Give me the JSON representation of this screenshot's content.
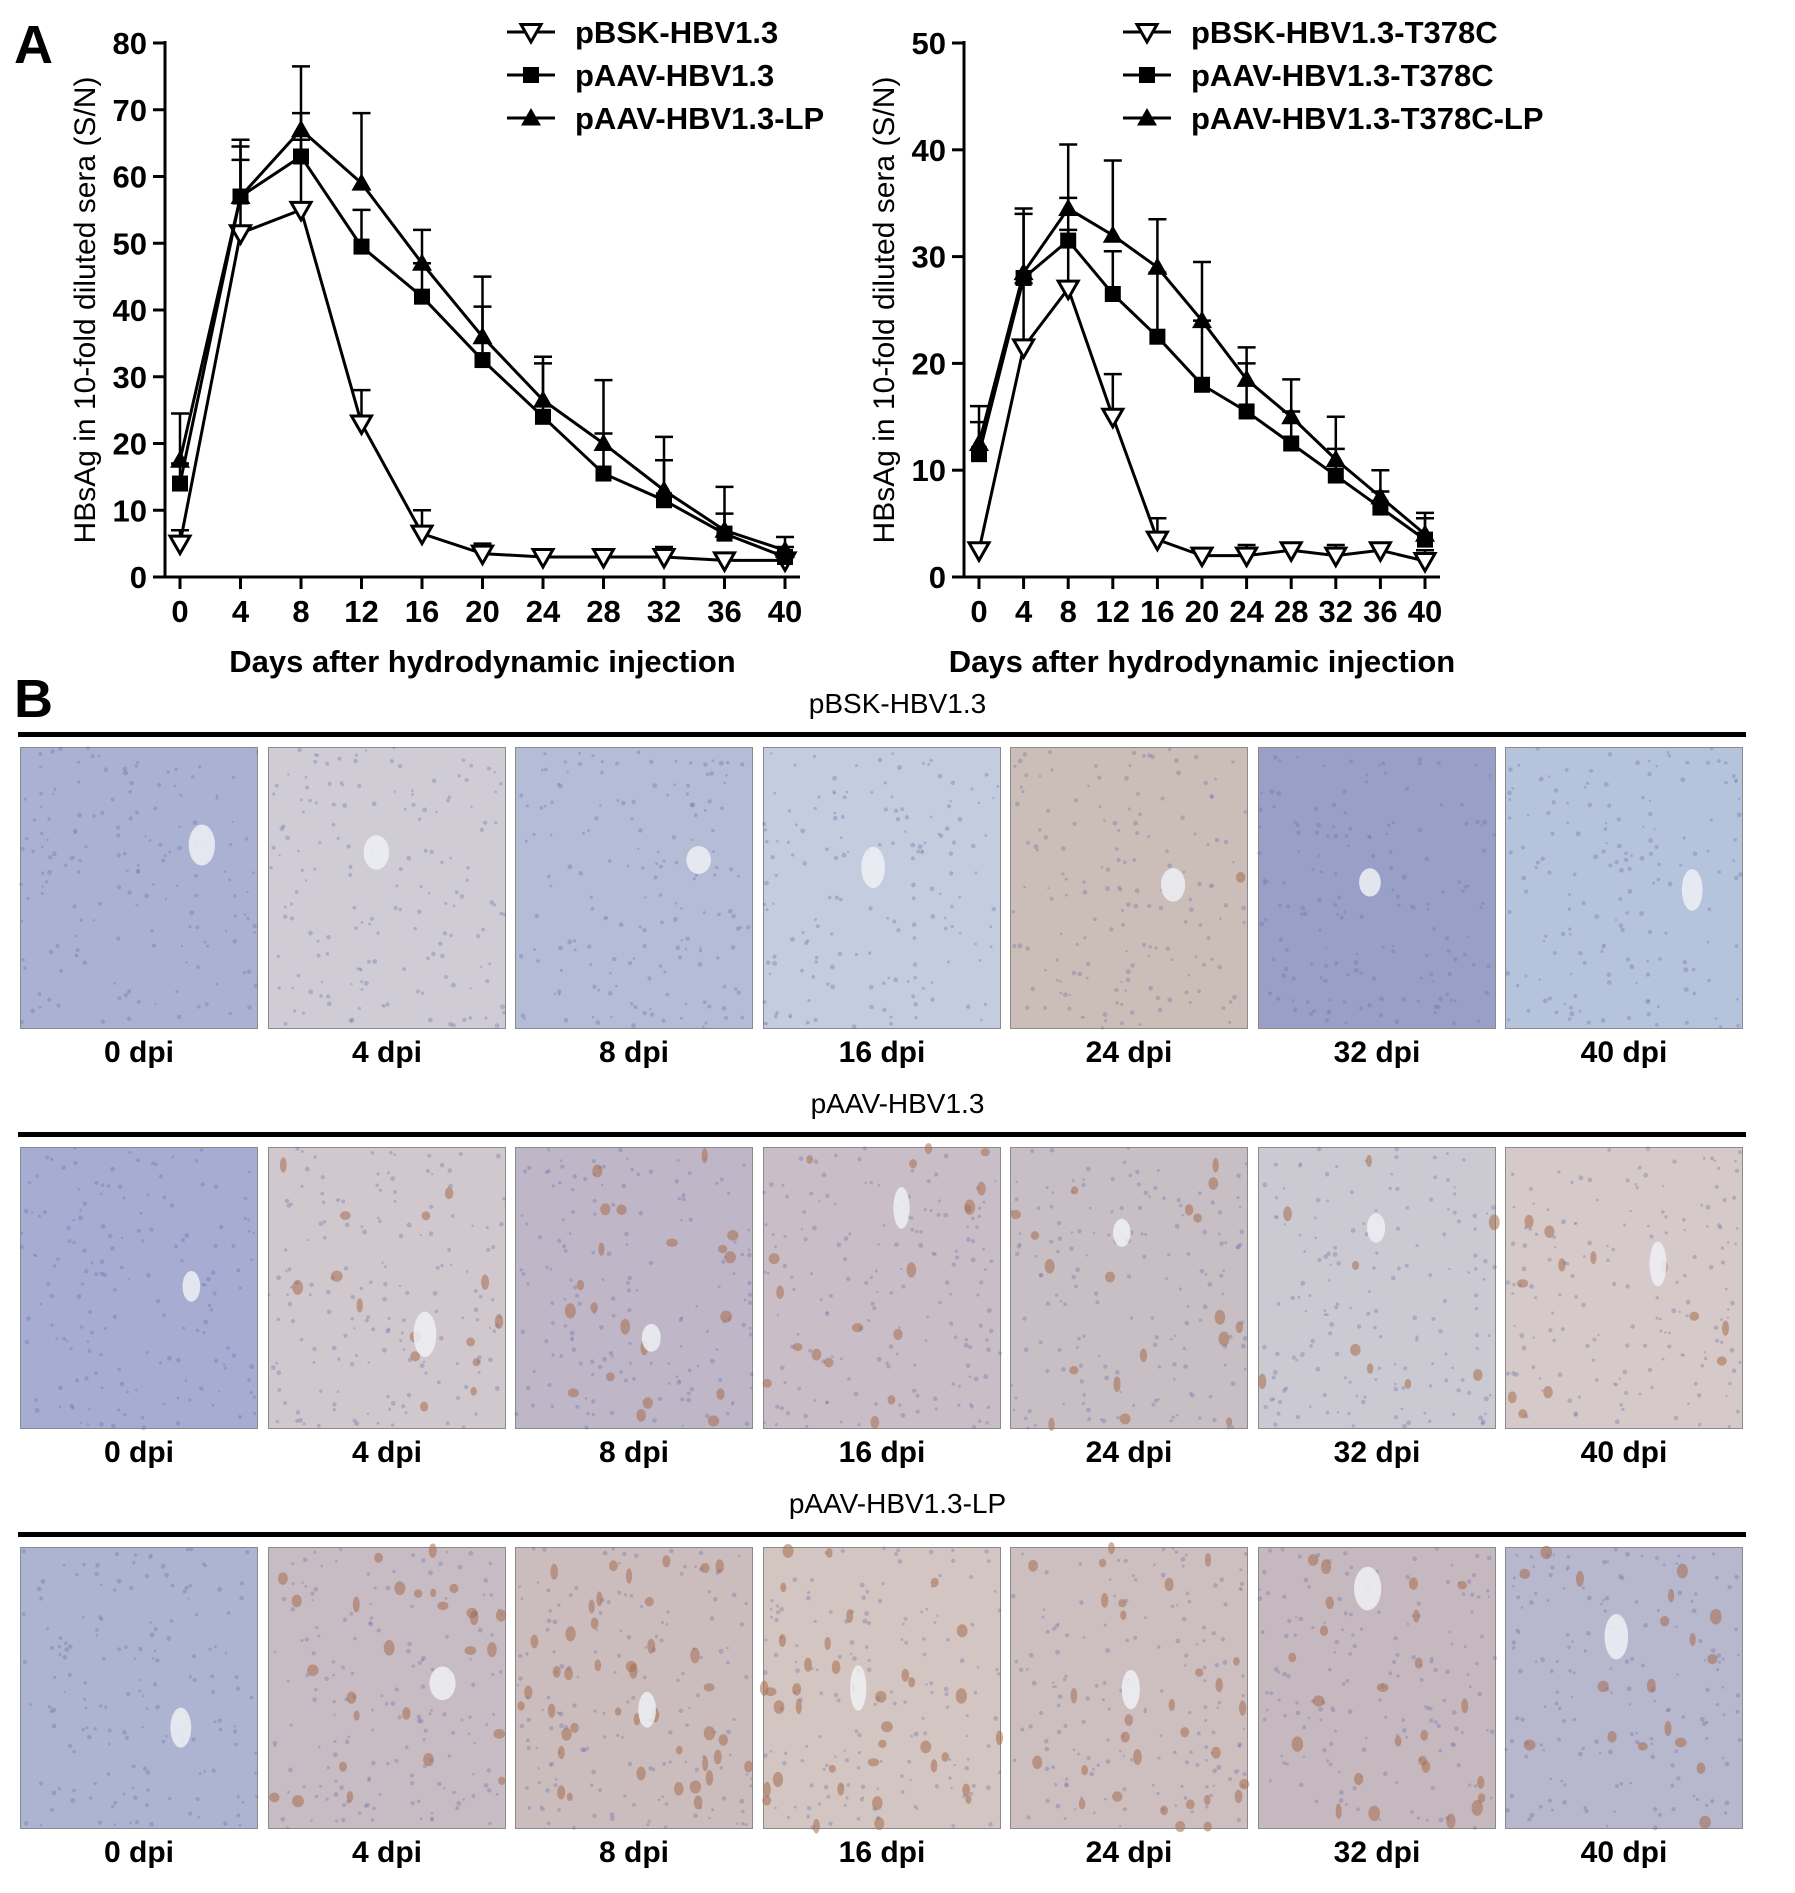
{
  "panel_a_letter": "A",
  "panel_b_letter": "B",
  "chart_data": [
    {
      "type": "line",
      "ylabel": "HBsAg in 10-fold diluted sera (S/N)",
      "xlabel": "Days after hydrodynamic injection",
      "x": [
        0,
        4,
        8,
        12,
        16,
        20,
        24,
        28,
        32,
        36,
        40
      ],
      "ylim": [
        0,
        80
      ],
      "yticks": [
        0,
        10,
        20,
        30,
        40,
        50,
        60,
        70,
        80
      ],
      "grid": false,
      "legend_position": "top-right",
      "series": [
        {
          "name": "pBSK-HBV1.3",
          "marker": "triangle-down-open",
          "values": [
            5,
            51.5,
            55,
            23,
            6.5,
            3.5,
            3,
            3,
            3,
            2.5,
            2.5
          ],
          "errors": [
            2,
            13,
            10.5,
            5,
            3.5,
            1.5,
            1,
            1,
            1.5,
            1,
            1
          ]
        },
        {
          "name": "pAAV-HBV1.3",
          "marker": "square",
          "values": [
            14,
            57,
            63,
            49.5,
            42,
            32.5,
            24,
            15.5,
            11.5,
            6.5,
            3
          ],
          "errors": [
            3,
            5.5,
            6.5,
            5.5,
            5,
            8,
            8,
            6,
            6,
            3,
            1.5
          ]
        },
        {
          "name": "pAAV-HBV1.3-LP",
          "marker": "triangle-up",
          "values": [
            17.5,
            57,
            67,
            59,
            47,
            36,
            26.5,
            20,
            13,
            7,
            4
          ],
          "errors": [
            7,
            8.5,
            9.5,
            10.5,
            5,
            9,
            6.5,
            9.5,
            8,
            6.5,
            2
          ]
        }
      ]
    },
    {
      "type": "line",
      "ylabel": "HBsAg in 10-fold diluted sera (S/N)",
      "xlabel": "Days after hydrodynamic injection",
      "x": [
        0,
        4,
        8,
        12,
        16,
        20,
        24,
        28,
        32,
        36,
        40
      ],
      "ylim": [
        0,
        50
      ],
      "yticks": [
        0,
        10,
        20,
        30,
        40,
        50
      ],
      "grid": false,
      "legend_position": "top-right",
      "series": [
        {
          "name": "pBSK-HBV1.3-T378C",
          "marker": "triangle-down-open",
          "values": [
            2.5,
            21.5,
            27,
            15,
            3.5,
            2,
            2,
            2.5,
            2,
            2.5,
            1.5
          ],
          "errors": [
            0.5,
            6,
            5.5,
            4,
            2,
            0.5,
            1,
            0.5,
            1,
            0.5,
            1
          ]
        },
        {
          "name": "pAAV-HBV1.3-T378C",
          "marker": "square",
          "values": [
            11.5,
            28,
            31.5,
            26.5,
            22.5,
            18,
            15.5,
            12.5,
            9.5,
            6.5,
            3.5
          ],
          "errors": [
            3,
            6,
            4,
            4,
            6,
            6,
            4.5,
            3,
            2.5,
            1.5,
            2
          ]
        },
        {
          "name": "pAAV-HBV1.3-T378C-LP",
          "marker": "triangle-up",
          "values": [
            12.5,
            28.5,
            34.5,
            32,
            29,
            24,
            18.5,
            15,
            11,
            7.5,
            4
          ],
          "errors": [
            3.5,
            6,
            6,
            7,
            4.5,
            5.5,
            3,
            3.5,
            4,
            2.5,
            2
          ]
        }
      ]
    }
  ],
  "panel_b": {
    "groups": [
      {
        "title": "pBSK-HBV1.3",
        "labels": [
          "0 dpi",
          "4 dpi",
          "8 dpi",
          "16 dpi",
          "24 dpi",
          "32 dpi",
          "40 dpi"
        ],
        "tints": [
          "#aab2d4",
          "#cfccd6",
          "#b5bcd6",
          "#c4cde0",
          "#cbbdb8",
          "#98a0c8",
          "#b6c3dc"
        ],
        "stained_fraction": [
          0,
          0,
          0,
          0,
          0.02,
          0,
          0
        ]
      },
      {
        "title": "pAAV-HBV1.3",
        "labels": [
          "0 dpi",
          "4 dpi",
          "8 dpi",
          "16 dpi",
          "24 dpi",
          "32 dpi",
          "40 dpi"
        ],
        "tints": [
          "#a7add2",
          "#d1c8ce",
          "#bfb7c8",
          "#c9bec8",
          "#c8bfc5",
          "#cbcad3",
          "#d6c9c9"
        ],
        "stained_fraction": [
          0,
          0.25,
          0.35,
          0.3,
          0.3,
          0.15,
          0.2
        ]
      },
      {
        "title": "pAAV-HBV1.3-LP",
        "labels": [
          "0 dpi",
          "4 dpi",
          "8 dpi",
          "16 dpi",
          "24 dpi",
          "32 dpi",
          "40 dpi"
        ],
        "tints": [
          "#adb4d2",
          "#c8bcc4",
          "#cbbcbe",
          "#d3c6c2",
          "#cdbfc0",
          "#c6b8bf",
          "#b7b7cd"
        ],
        "stained_fraction": [
          0,
          0.45,
          0.7,
          0.6,
          0.5,
          0.4,
          0.3
        ]
      }
    ],
    "stain_color": "#a86e4e"
  }
}
